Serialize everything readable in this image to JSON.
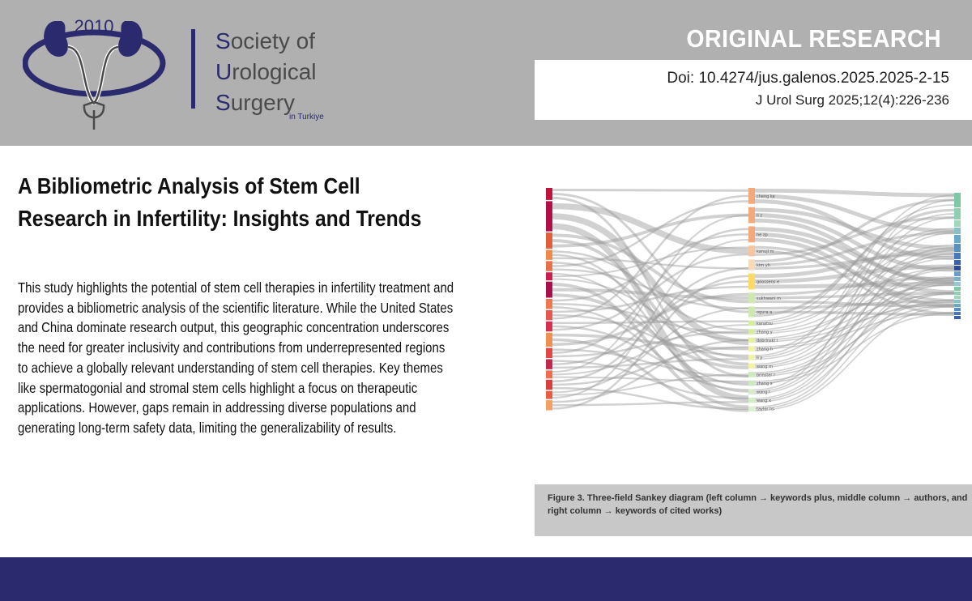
{
  "logo": {
    "year": "2010",
    "name_lines": [
      {
        "initial": "S",
        "rest": "ociety of"
      },
      {
        "initial": "U",
        "rest": "rological"
      },
      {
        "initial": "S",
        "rest": "urgery"
      }
    ],
    "region": "in Turkiye",
    "colors": {
      "brand": "#2b2a6e",
      "gray": "#4a4a4a"
    }
  },
  "header": {
    "label": "ORIGINAL RESEARCH",
    "doi": "Doi: 10.4274/jus.galenos.2025.2025-2-15",
    "citation": "J Urol Surg 2025;12(4):226-236",
    "background": "#b0b0b0"
  },
  "article": {
    "title": "A Bibliometric Analysis of Stem Cell Research in Infertility: Insights and Trends",
    "abstract_lines": [
      "This study highlights the potential of stem cell therapies in infertility treatment and",
      "provides a bibliometric analysis of the scientific literature. While the United States",
      "and China dominate research output, this geographic concentration underscores",
      "the need for greater inclusivity and contributions from underrepresented regions",
      "to achieve a globally relevant understanding of stem cell therapies. Key themes",
      "like spermatogonial and stromal stem cells highlight a focus on therapeutic",
      "applications. However, gaps remain in addressing diverse populations and",
      "generating long-term safety data, limiting the generalizability of results."
    ]
  },
  "figure": {
    "caption": "Figure 3. Three-field Sankey diagram (left column → keywords plus, middle column → authors, and right column → keywords of cited works)",
    "middle_nodes": [
      {
        "label": "cheng ke",
        "weight": 3,
        "color": "#f4a97a"
      },
      {
        "label": "li z",
        "weight": 3,
        "color": "#f4a97a"
      },
      {
        "label": "he zp",
        "weight": 3,
        "color": "#f4a97a"
      },
      {
        "label": "kanujl m",
        "weight": 2,
        "color": "#f8c4a0"
      },
      {
        "label": "kim yh",
        "weight": 2,
        "color": "#f8d9b8"
      },
      {
        "label": "goossens e",
        "weight": 3,
        "color": "#ffd966"
      },
      {
        "label": "sukhwani m",
        "weight": 2,
        "color": "#cfe8b0"
      },
      {
        "label": "ogura a",
        "weight": 2,
        "color": "#cfe8b0"
      },
      {
        "label": "kanatsu",
        "weight": 1,
        "color": "#d8ec9e"
      },
      {
        "label": "zhang y",
        "weight": 1,
        "color": "#d8ec9e"
      },
      {
        "label": "dobrinski i",
        "weight": 1,
        "color": "#e6f0a0"
      },
      {
        "label": "zhang h",
        "weight": 1,
        "color": "#eef3a8"
      },
      {
        "label": "li y",
        "weight": 1,
        "color": "#eef3a8"
      },
      {
        "label": "wang m",
        "weight": 1,
        "color": "#f3f3a8"
      },
      {
        "label": "brinster r",
        "weight": 1,
        "color": "#cde9c0"
      },
      {
        "label": "zhang x",
        "weight": 1,
        "color": "#cde9c0"
      },
      {
        "label": "wang l",
        "weight": 1,
        "color": "#d4ecc8"
      },
      {
        "label": "wang x",
        "weight": 1,
        "color": "#d4ecc8"
      },
      {
        "label": "taylor hs",
        "weight": 1,
        "color": "#dcefd0"
      }
    ]
  }
}
